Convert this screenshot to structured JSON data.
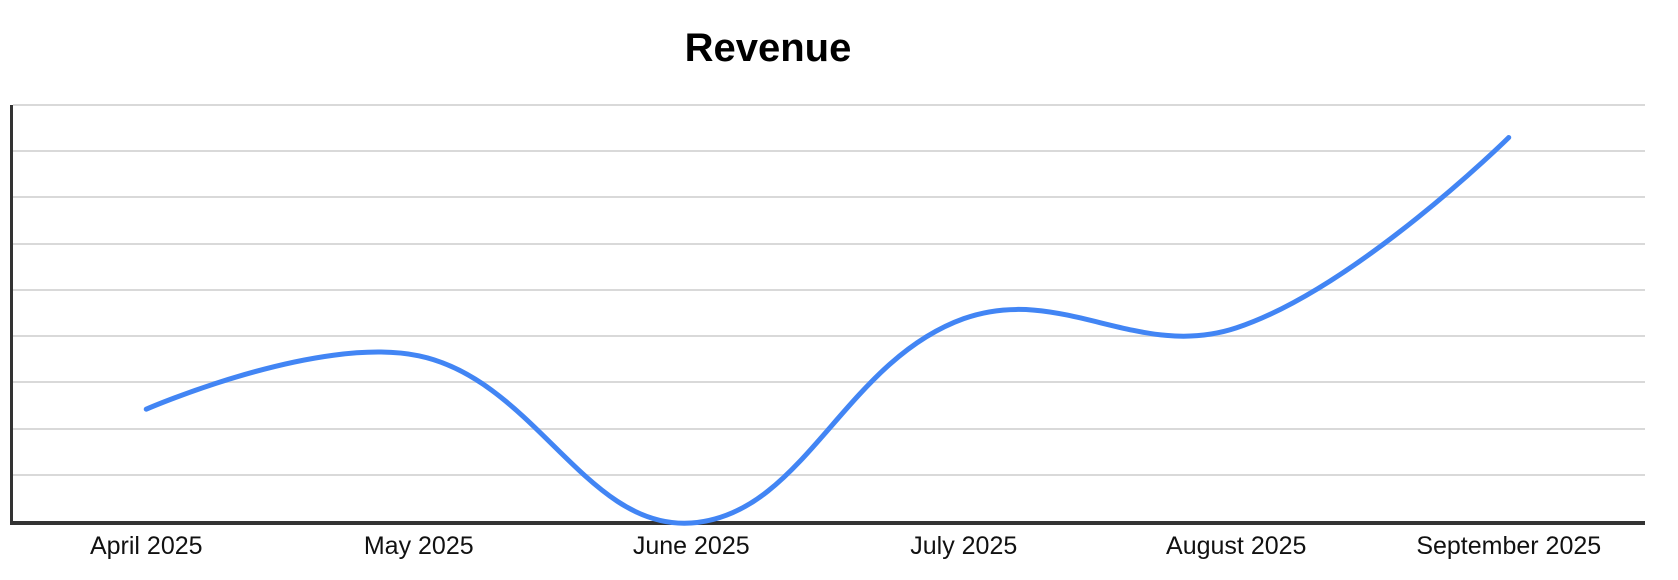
{
  "chart_data": {
    "type": "line",
    "title": "Revenue",
    "categories": [
      "April 2025",
      "May 2025",
      "June 2025",
      "July 2025",
      "August 2025",
      "September 2025"
    ],
    "series": [
      {
        "name": "Revenue",
        "values": [
          24.5,
          36,
          0,
          44,
          42,
          83
        ]
      }
    ],
    "xlabel": "",
    "ylabel": "",
    "ylim": [
      0,
      90
    ],
    "y_gridline_step": 10,
    "y_tick_labels_visible": false,
    "grid": "horizontal",
    "legend_position": "none",
    "line_style": "smooth-bezier-tension-0.4",
    "points_visible": false
  },
  "colors": {
    "line": "#4285f4",
    "gridline": "#d9d9d9",
    "axis": "#333333",
    "title_text": "#000000",
    "label_text": "#111111",
    "background": "#ffffff"
  }
}
